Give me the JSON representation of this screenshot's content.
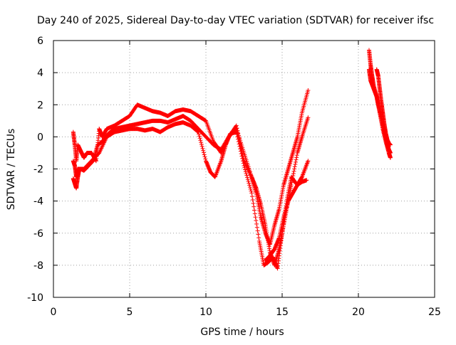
{
  "chart_data": {
    "type": "scatter",
    "title": "Day 240 of 2025, Sidereal Day-to-day VTEC variation (SDTVAR) for receiver ifsc",
    "xlabel": "GPS time / hours",
    "ylabel": "SDTVAR / TECUs",
    "xlim": [
      0,
      25
    ],
    "ylim": [
      -10,
      6
    ],
    "x_ticks": [
      "0",
      "5",
      "10",
      "15",
      "20",
      "25"
    ],
    "y_ticks": [
      "-10",
      "-8",
      "-6",
      "-4",
      "-2",
      "0",
      "2",
      "4",
      "6"
    ],
    "grid": true,
    "legend": "none",
    "marker": "+",
    "color": "#ff0000",
    "series": [
      {
        "x": [
          1.3,
          1.4,
          1.5,
          1.6,
          1.8,
          2.0,
          2.2,
          2.5,
          2.8,
          3.0,
          3.2,
          3.5,
          4.0,
          4.5,
          5.0,
          5.5,
          6.0,
          6.5,
          7.0,
          7.5,
          8.0,
          8.5,
          9.0,
          9.5,
          10.0,
          10.5,
          11.0,
          11.5,
          12.0,
          12.5,
          13.0,
          13.3,
          13.6,
          13.9,
          14.2,
          14.5,
          14.8,
          15.1,
          15.4,
          15.7,
          16.0,
          16.3,
          16.7
        ],
        "y": [
          0.3,
          -0.5,
          -1.5,
          -0.5,
          -0.9,
          -1.3,
          -1.0,
          -1.0,
          -1.5,
          0.5,
          0.0,
          0.5,
          0.7,
          1.0,
          1.3,
          2.0,
          1.8,
          1.6,
          1.5,
          1.3,
          1.6,
          1.7,
          1.6,
          1.3,
          1.0,
          -0.3,
          -1.0,
          0.0,
          0.7,
          -1.5,
          -2.5,
          -3.5,
          -5.0,
          -6.0,
          -6.7,
          -5.5,
          -4.5,
          -3.0,
          -2.0,
          -1.0,
          0.0,
          1.5,
          2.9
        ]
      },
      {
        "x": [
          1.3,
          1.4,
          1.5,
          1.6,
          1.8,
          2.0,
          2.3,
          2.6,
          2.9,
          3.2,
          3.6,
          4.0,
          4.5,
          5.0,
          5.5,
          6.0,
          6.5,
          7.0,
          7.5,
          8.0,
          8.5,
          9.0,
          9.5,
          10.0,
          10.5,
          11.0,
          11.5,
          12.0,
          12.5,
          13.0,
          13.3,
          13.6,
          13.9,
          14.2,
          14.5,
          14.8,
          15.0,
          15.3,
          15.6,
          16.0,
          16.3,
          16.7
        ],
        "y": [
          -1.5,
          -1.8,
          -2.5,
          -2.0,
          -2.0,
          -2.1,
          -1.8,
          -1.5,
          -0.5,
          -0.3,
          0.2,
          0.5,
          0.6,
          0.7,
          0.8,
          0.9,
          1.0,
          1.0,
          0.9,
          1.1,
          1.3,
          1.0,
          0.5,
          0.0,
          -0.5,
          -0.8,
          0.0,
          0.5,
          -1.0,
          -2.5,
          -3.2,
          -4.2,
          -5.5,
          -7.2,
          -8.0,
          -7.0,
          -6.0,
          -4.5,
          -3.0,
          -1.0,
          0.0,
          1.2
        ]
      },
      {
        "x": [
          1.3,
          1.4,
          1.5,
          1.6,
          1.7,
          2.0,
          2.5,
          3.0,
          3.5,
          4.0,
          4.5,
          5.0,
          5.5,
          6.0,
          6.5,
          7.0,
          7.5,
          8.0,
          8.5,
          9.0,
          9.5,
          10.0,
          10.3,
          10.6,
          11.0,
          11.3,
          11.6,
          12.0,
          12.5,
          13.0,
          13.5,
          13.8,
          14.1,
          14.4,
          14.7,
          15.0,
          15.3,
          15.6,
          16.0,
          16.3,
          16.7
        ],
        "y": [
          -2.6,
          -2.9,
          -3.2,
          -2.5,
          -2.0,
          -2.0,
          -1.5,
          -1.0,
          0.0,
          0.3,
          0.4,
          0.5,
          0.5,
          0.4,
          0.5,
          0.3,
          0.6,
          0.8,
          0.9,
          0.7,
          0.3,
          -1.5,
          -2.2,
          -2.5,
          -1.5,
          -0.5,
          0.2,
          0.3,
          -1.8,
          -3.5,
          -6.5,
          -8.0,
          -7.8,
          -7.5,
          -8.2,
          -6.0,
          -4.0,
          -2.5,
          -3.0,
          -2.5,
          -1.5
        ]
      },
      {
        "x": [
          13.9,
          14.2,
          14.5,
          14.8,
          15.1,
          15.4,
          15.7,
          16.0,
          16.3,
          16.6
        ],
        "y": [
          -7.7,
          -7.4,
          -7.0,
          -6.3,
          -5.0,
          -4.0,
          -3.5,
          -3.0,
          -2.8,
          -2.7
        ]
      },
      {
        "x": [
          20.7,
          20.8,
          20.9,
          21.0,
          21.2,
          21.4,
          21.6,
          21.8,
          22.0,
          22.1
        ],
        "y": [
          5.4,
          4.5,
          3.8,
          3.2,
          2.5,
          1.5,
          0.5,
          -0.3,
          -1.0,
          -1.3
        ]
      },
      {
        "x": [
          20.7,
          20.8,
          21.0,
          21.2,
          21.3,
          21.5,
          21.7,
          21.9,
          22.0,
          22.1
        ],
        "y": [
          4.2,
          3.5,
          3.0,
          2.5,
          2.0,
          1.2,
          0.3,
          -0.5,
          -0.8,
          -1.0
        ]
      },
      {
        "x": [
          21.2,
          21.3,
          21.4,
          21.5,
          21.6,
          21.7,
          21.8,
          21.9,
          22.0,
          22.1
        ],
        "y": [
          4.2,
          3.8,
          3.0,
          2.2,
          1.5,
          0.8,
          0.2,
          -0.2,
          -0.4,
          -0.5
        ]
      }
    ]
  }
}
